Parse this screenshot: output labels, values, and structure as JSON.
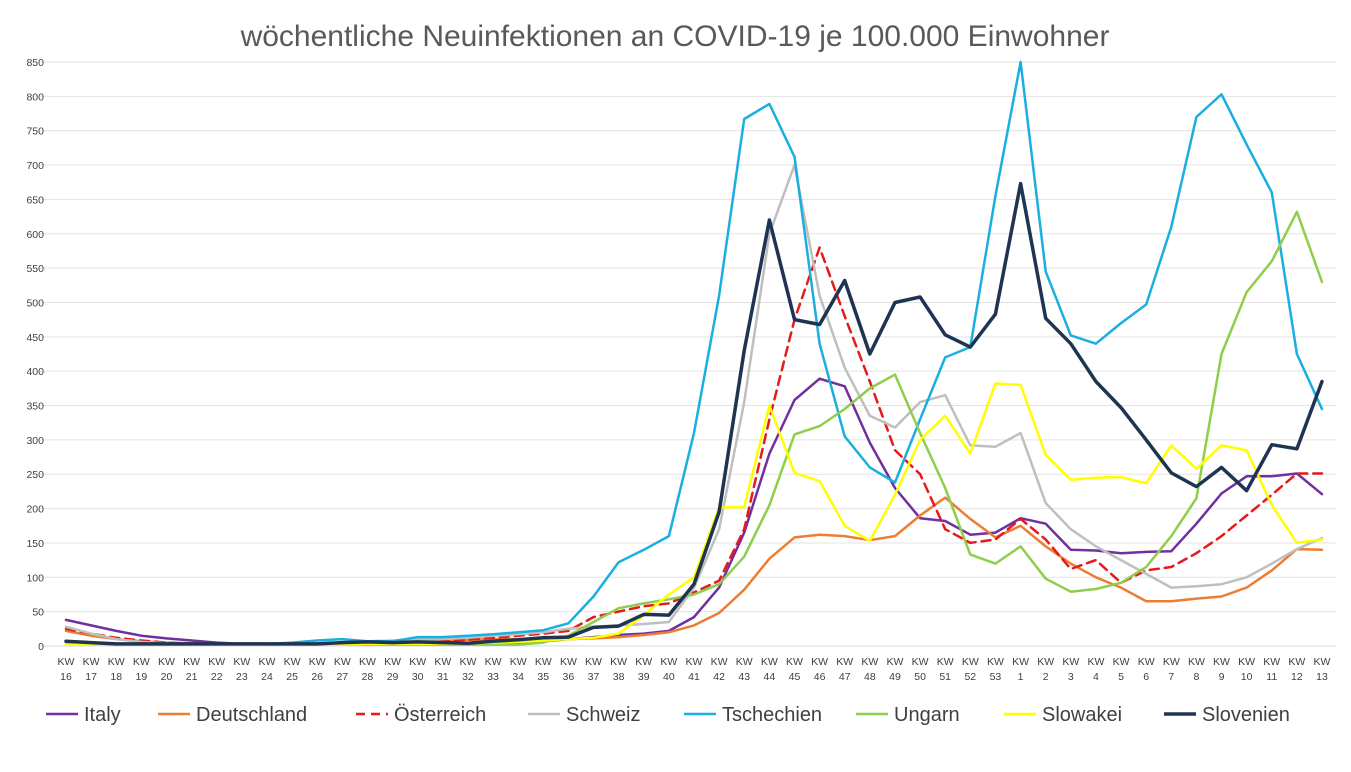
{
  "chart_data": {
    "type": "line",
    "title": "wöchentliche Neuinfektionen an COVID-19 je 100.000 Einwohner",
    "xlabel": "",
    "ylabel": "",
    "ylim": [
      0,
      850
    ],
    "yticks": [
      0,
      50,
      100,
      150,
      200,
      250,
      300,
      350,
      400,
      450,
      500,
      550,
      600,
      650,
      700,
      750,
      800,
      850
    ],
    "grid": "horizontal",
    "legend_position": "bottom",
    "categories": [
      [
        "KW",
        "16"
      ],
      [
        "KW",
        "17"
      ],
      [
        "KW",
        "18"
      ],
      [
        "KW",
        "19"
      ],
      [
        "KW",
        "20"
      ],
      [
        "KW",
        "21"
      ],
      [
        "KW",
        "22"
      ],
      [
        "KW",
        "23"
      ],
      [
        "KW",
        "24"
      ],
      [
        "KW",
        "25"
      ],
      [
        "KW",
        "26"
      ],
      [
        "KW",
        "27"
      ],
      [
        "KW",
        "28"
      ],
      [
        "KW",
        "29"
      ],
      [
        "KW",
        "30"
      ],
      [
        "KW",
        "31"
      ],
      [
        "KW",
        "32"
      ],
      [
        "KW",
        "33"
      ],
      [
        "KW",
        "34"
      ],
      [
        "KW",
        "35"
      ],
      [
        "KW",
        "36"
      ],
      [
        "KW",
        "37"
      ],
      [
        "KW",
        "38"
      ],
      [
        "KW",
        "39"
      ],
      [
        "KW",
        "40"
      ],
      [
        "KW",
        "41"
      ],
      [
        "KW",
        "42"
      ],
      [
        "KW",
        "43"
      ],
      [
        "KW",
        "44"
      ],
      [
        "KW",
        "45"
      ],
      [
        "KW",
        "46"
      ],
      [
        "KW",
        "47"
      ],
      [
        "KW",
        "48"
      ],
      [
        "KW",
        "49"
      ],
      [
        "KW",
        "50"
      ],
      [
        "KW",
        "51"
      ],
      [
        "KW",
        "52"
      ],
      [
        "KW",
        "53"
      ],
      [
        "KW",
        "1"
      ],
      [
        "KW",
        "2"
      ],
      [
        "KW",
        "3"
      ],
      [
        "KW",
        "4"
      ],
      [
        "KW",
        "5"
      ],
      [
        "KW",
        "6"
      ],
      [
        "KW",
        "7"
      ],
      [
        "KW",
        "8"
      ],
      [
        "KW",
        "9"
      ],
      [
        "KW",
        "10"
      ],
      [
        "KW",
        "11"
      ],
      [
        "KW",
        "12"
      ],
      [
        "KW",
        "13"
      ]
    ],
    "series": [
      {
        "name": "Italy",
        "color": "#7030a0",
        "dash": false,
        "width": 2.5,
        "values": [
          38,
          30,
          22,
          15,
          11,
          8,
          5,
          3,
          2,
          2,
          2,
          2,
          3,
          3,
          3,
          3,
          3,
          4,
          5,
          7,
          10,
          13,
          16,
          18,
          22,
          42,
          85,
          165,
          280,
          358,
          389,
          378,
          296,
          230,
          186,
          182,
          162,
          165,
          186,
          178,
          140,
          139,
          135,
          137,
          138,
          178,
          222,
          247,
          247,
          251,
          221
        ]
      },
      {
        "name": "Deutschland",
        "color": "#ed7d31",
        "dash": false,
        "width": 2.5,
        "values": [
          22,
          15,
          10,
          7,
          5,
          4,
          3,
          3,
          3,
          3,
          3,
          4,
          5,
          6,
          7,
          8,
          9,
          10,
          10,
          10,
          10,
          11,
          13,
          16,
          20,
          30,
          48,
          82,
          127,
          158,
          162,
          160,
          154,
          160,
          190,
          216,
          185,
          158,
          175,
          145,
          120,
          100,
          85,
          65,
          65,
          69,
          72,
          85,
          110,
          141,
          140
        ]
      },
      {
        "name": "Österreich",
        "color": "#e41a1c",
        "dash": true,
        "width": 2.5,
        "values": [
          25,
          18,
          12,
          8,
          5,
          3,
          3,
          3,
          3,
          3,
          3,
          4,
          6,
          7,
          7,
          8,
          9,
          12,
          15,
          18,
          22,
          42,
          50,
          58,
          62,
          78,
          95,
          170,
          330,
          475,
          580,
          480,
          385,
          285,
          250,
          170,
          150,
          155,
          185,
          155,
          112,
          125,
          92,
          110,
          115,
          135,
          160,
          190,
          220,
          251,
          251
        ]
      },
      {
        "name": "Schweiz",
        "color": "#bfbfbf",
        "dash": false,
        "width": 2.5,
        "values": [
          28,
          18,
          10,
          6,
          4,
          3,
          2,
          2,
          2,
          2,
          3,
          5,
          7,
          8,
          9,
          10,
          12,
          15,
          17,
          20,
          25,
          28,
          30,
          32,
          35,
          85,
          170,
          355,
          600,
          700,
          510,
          405,
          335,
          318,
          355,
          365,
          292,
          290,
          310,
          208,
          170,
          145,
          125,
          105,
          85,
          87,
          90,
          100,
          120,
          141,
          157
        ]
      },
      {
        "name": "Tschechien",
        "color": "#1aafe0",
        "dash": false,
        "width": 2.5,
        "values": [
          5,
          3,
          2,
          2,
          2,
          2,
          3,
          3,
          3,
          5,
          8,
          10,
          7,
          7,
          13,
          13,
          15,
          17,
          20,
          23,
          33,
          72,
          122,
          140,
          160,
          310,
          510,
          767,
          789,
          712,
          440,
          305,
          260,
          238,
          330,
          420,
          435,
          655,
          850,
          545,
          452,
          440,
          470,
          497,
          610,
          770,
          803,
          730,
          660,
          425,
          345
        ]
      },
      {
        "name": "Ungarn",
        "color": "#8fce4a",
        "dash": false,
        "width": 2.5,
        "values": [
          3,
          2,
          2,
          2,
          2,
          2,
          2,
          2,
          2,
          2,
          2,
          2,
          2,
          2,
          2,
          2,
          2,
          2,
          2,
          5,
          15,
          35,
          55,
          62,
          68,
          75,
          90,
          130,
          205,
          308,
          320,
          345,
          375,
          395,
          310,
          230,
          133,
          120,
          145,
          98,
          79,
          83,
          92,
          115,
          160,
          215,
          425,
          515,
          560,
          632,
          530
        ]
      },
      {
        "name": "Slowakei",
        "color": "#ffff00",
        "dash": false,
        "width": 2.5,
        "values": [
          2,
          2,
          2,
          2,
          2,
          2,
          2,
          2,
          2,
          2,
          2,
          2,
          3,
          3,
          3,
          3,
          4,
          5,
          6,
          8,
          10,
          12,
          18,
          45,
          75,
          100,
          202,
          202,
          350,
          252,
          240,
          175,
          153,
          220,
          300,
          335,
          280,
          382,
          380,
          278,
          242,
          245,
          246,
          237,
          292,
          258,
          292,
          285,
          205,
          150,
          155
        ]
      },
      {
        "name": "Slovenien",
        "color": "#1f3453",
        "dash": false,
        "width": 3.5,
        "values": [
          7,
          5,
          3,
          3,
          3,
          3,
          3,
          3,
          3,
          3,
          3,
          5,
          6,
          5,
          6,
          5,
          4,
          7,
          9,
          12,
          13,
          27,
          29,
          46,
          45,
          90,
          195,
          430,
          620,
          475,
          468,
          532,
          425,
          500,
          508,
          453,
          435,
          483,
          673,
          477,
          440,
          385,
          347,
          300,
          252,
          232,
          260,
          226,
          293,
          287,
          385
        ]
      }
    ]
  }
}
